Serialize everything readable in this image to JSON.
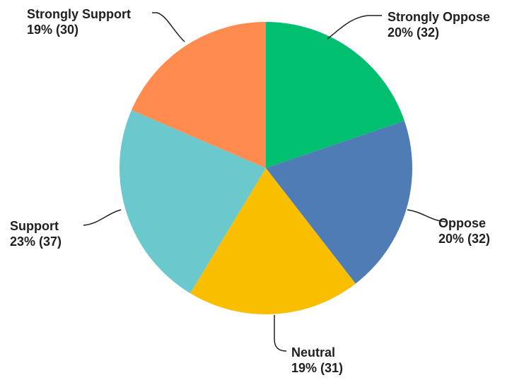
{
  "chart_data": {
    "type": "pie",
    "title": "",
    "start_angle_deg": 0,
    "direction": "clockwise",
    "slices": [
      {
        "label": "Strongly Oppose",
        "percent_text": "20% (32)",
        "value": 32,
        "color": "#00bf6f"
      },
      {
        "label": "Oppose",
        "percent_text": "20% (32)",
        "value": 32,
        "color": "#507cb6"
      },
      {
        "label": "Neutral",
        "percent_text": "19% (31)",
        "value": 31,
        "color": "#f9be00"
      },
      {
        "label": "Support",
        "percent_text": "23% (37)",
        "value": 37,
        "color": "#6bc8cd"
      },
      {
        "label": "Strongly Support",
        "percent_text": "19% (30)",
        "value": 30,
        "color": "#ff8b4f"
      }
    ]
  }
}
